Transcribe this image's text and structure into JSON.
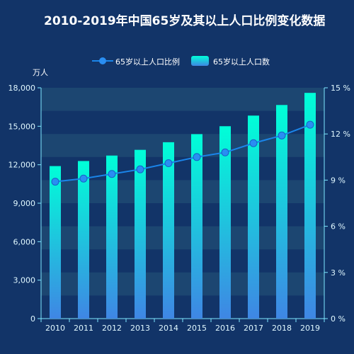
{
  "chart_data": {
    "type": "bar",
    "title": "2010-2019年中国65岁及其以上人口比例变化数据",
    "categories": [
      "2010",
      "2011",
      "2012",
      "2013",
      "2014",
      "2015",
      "2016",
      "2017",
      "2018",
      "2019"
    ],
    "series": [
      {
        "name": "65岁以上人口比例",
        "type": "line",
        "axis": "right",
        "values": [
          8.9,
          9.1,
          9.4,
          9.7,
          10.1,
          10.5,
          10.8,
          11.4,
          11.9,
          12.6
        ]
      },
      {
        "name": "65岁以上人口数",
        "type": "bar",
        "axis": "left",
        "values": [
          11894,
          12288,
          12714,
          13161,
          13755,
          14386,
          15003,
          15831,
          16658,
          17603
        ]
      }
    ],
    "y_left": {
      "unit": "万人",
      "min": 0,
      "max": 18000,
      "ticks": [
        "0",
        "3,000",
        "6,000",
        "9,000",
        "12,000",
        "15,000",
        "18,000"
      ]
    },
    "y_right": {
      "min": 0,
      "max": 15,
      "ticks": [
        "0 %",
        "3 %",
        "6 %",
        "9 %",
        "12 %",
        "15 %"
      ]
    },
    "legend_position": "top-center",
    "grid": "alternating horizontal bands",
    "colors": {
      "background": "#123468",
      "bar_top": "#00ffd8",
      "bar_bottom": "#3f86e4",
      "line": "#1a85ea",
      "point": "#2a8ef2",
      "band": "#1e4a73",
      "text": "#ffffff",
      "axis_label": "#e0f8ff"
    }
  }
}
